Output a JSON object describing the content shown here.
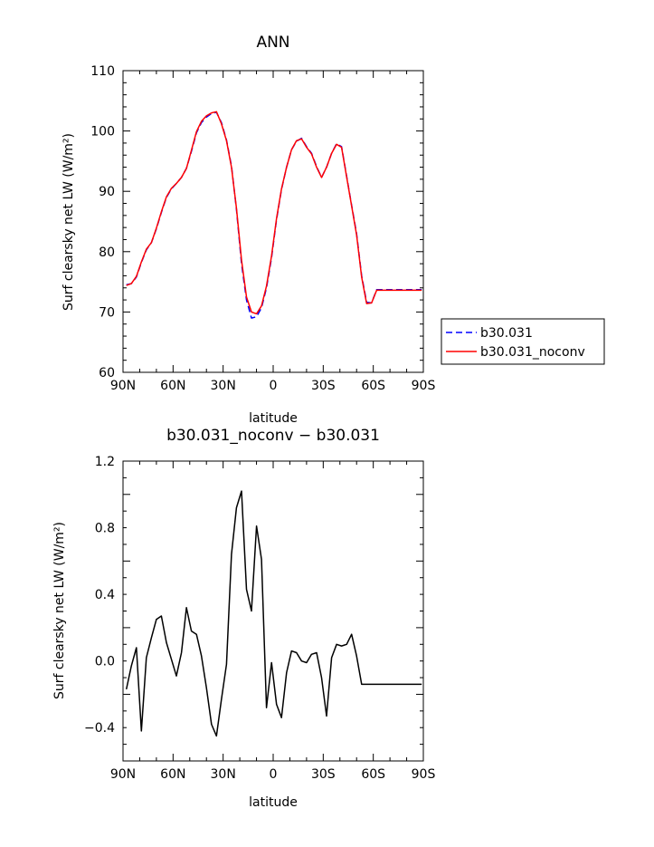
{
  "chart_data": [
    {
      "type": "line",
      "title": "ANN",
      "xlabel": "latitude",
      "ylabel": "Surf clearsky net LW (W/m²)",
      "xlim": [
        -90,
        90
      ],
      "ylim": [
        60,
        110
      ],
      "x_tick_labels": [
        "90N",
        "60N",
        "30N",
        "0",
        "30S",
        "60S",
        "90S"
      ],
      "y_tick_labels": [
        "60",
        "70",
        "80",
        "90",
        "100",
        "110"
      ],
      "legend": "right",
      "x": [
        -88,
        -85,
        -82,
        -79,
        -76,
        -73,
        -70,
        -67,
        -64,
        -61,
        -58,
        -55,
        -52,
        -49,
        -46,
        -43,
        -40,
        -37,
        -34,
        -31,
        -28,
        -25,
        -22,
        -19,
        -16,
        -13,
        -10,
        -7,
        -4,
        -1,
        2,
        5,
        8,
        11,
        14,
        17,
        20,
        23,
        26,
        29,
        32,
        35,
        38,
        41,
        44,
        47,
        50,
        53,
        56,
        59,
        62,
        65,
        68,
        71,
        74,
        77,
        80,
        83,
        86,
        89
      ],
      "series": [
        {
          "name": "b30.031",
          "color": "#0000ff",
          "dash": "dashed",
          "values": [
            74.5,
            74.7,
            75.8,
            78.2,
            80.3,
            81.5,
            83.8,
            86.5,
            89.0,
            90.4,
            91.3,
            92.3,
            93.8,
            96.6,
            99.7,
            101.4,
            102.3,
            102.9,
            103.1,
            101.4,
            98.5,
            94.2,
            87.0,
            78.0,
            72.0,
            69.0,
            69.2,
            70.7,
            74.0,
            79.0,
            85.3,
            90.3,
            94.0,
            96.9,
            98.3,
            98.8,
            97.4,
            96.3,
            94.1,
            92.3,
            94.0,
            96.3,
            97.9,
            97.4,
            92.5,
            87.7,
            83.0,
            76.0,
            71.6,
            71.5,
            73.7,
            73.7,
            73.7,
            73.7,
            73.7,
            73.7,
            73.7,
            73.7,
            73.7,
            73.7
          ]
        },
        {
          "name": "b30.031_noconv",
          "color": "#ff0000",
          "dash": "solid",
          "values": [
            74.4,
            74.7,
            75.9,
            78.3,
            80.4,
            81.5,
            83.9,
            86.6,
            89.1,
            90.5,
            91.3,
            92.3,
            93.8,
            96.8,
            99.9,
            101.6,
            102.5,
            103.0,
            103.2,
            101.2,
            98.4,
            94.0,
            87.2,
            78.6,
            72.5,
            70.0,
            69.7,
            71.0,
            74.3,
            79.3,
            85.5,
            90.4,
            94.0,
            96.9,
            98.4,
            98.7,
            97.3,
            96.2,
            94.0,
            92.3,
            94.0,
            96.3,
            97.8,
            97.3,
            92.4,
            87.6,
            82.8,
            75.8,
            71.4,
            71.5,
            73.6,
            73.6,
            73.6,
            73.6,
            73.6,
            73.6,
            73.6,
            73.6,
            73.6,
            73.6
          ]
        }
      ]
    },
    {
      "type": "line",
      "title": "b30.031_noconv − b30.031",
      "xlabel": "latitude",
      "ylabel": "Surf clearsky net LW (W/m²)",
      "xlim": [
        -90,
        90
      ],
      "ylim": [
        -0.6,
        1.2
      ],
      "x_tick_labels": [
        "90N",
        "60N",
        "30N",
        "0",
        "30S",
        "60S",
        "90S"
      ],
      "y_tick_labels": [
        "−0.4",
        "0.0",
        "0.4",
        "0.8",
        "1.2"
      ],
      "x": [
        -88,
        -85,
        -82,
        -79,
        -76,
        -73,
        -70,
        -67,
        -64,
        -61,
        -58,
        -55,
        -52,
        -49,
        -46,
        -43,
        -40,
        -37,
        -34,
        -31,
        -28,
        -25,
        -22,
        -19,
        -16,
        -13,
        -10,
        -7,
        -4,
        -1,
        2,
        5,
        8,
        11,
        14,
        17,
        20,
        23,
        26,
        29,
        32,
        35,
        38,
        41,
        44,
        47,
        50,
        53,
        56,
        59,
        62,
        65,
        68,
        71,
        74,
        77,
        80,
        83,
        86,
        89
      ],
      "series": [
        {
          "color": "#000000",
          "dash": "solid",
          "values": [
            -0.17,
            -0.03,
            0.08,
            -0.42,
            0.02,
            0.14,
            0.25,
            0.27,
            0.11,
            0.01,
            -0.09,
            0.05,
            0.32,
            0.18,
            0.16,
            0.03,
            -0.16,
            -0.38,
            -0.45,
            -0.23,
            -0.02,
            0.64,
            0.92,
            1.02,
            0.43,
            0.3,
            0.81,
            0.61,
            -0.28,
            -0.01,
            -0.26,
            -0.34,
            -0.07,
            0.06,
            0.05,
            0.0,
            -0.01,
            0.04,
            0.05,
            -0.1,
            -0.33,
            0.02,
            0.1,
            0.09,
            0.1,
            0.16,
            0.03,
            -0.14,
            -0.14,
            -0.14,
            -0.14,
            -0.14,
            -0.14,
            -0.14,
            -0.14,
            -0.14,
            -0.14,
            -0.14,
            -0.14,
            -0.14
          ]
        }
      ]
    }
  ]
}
